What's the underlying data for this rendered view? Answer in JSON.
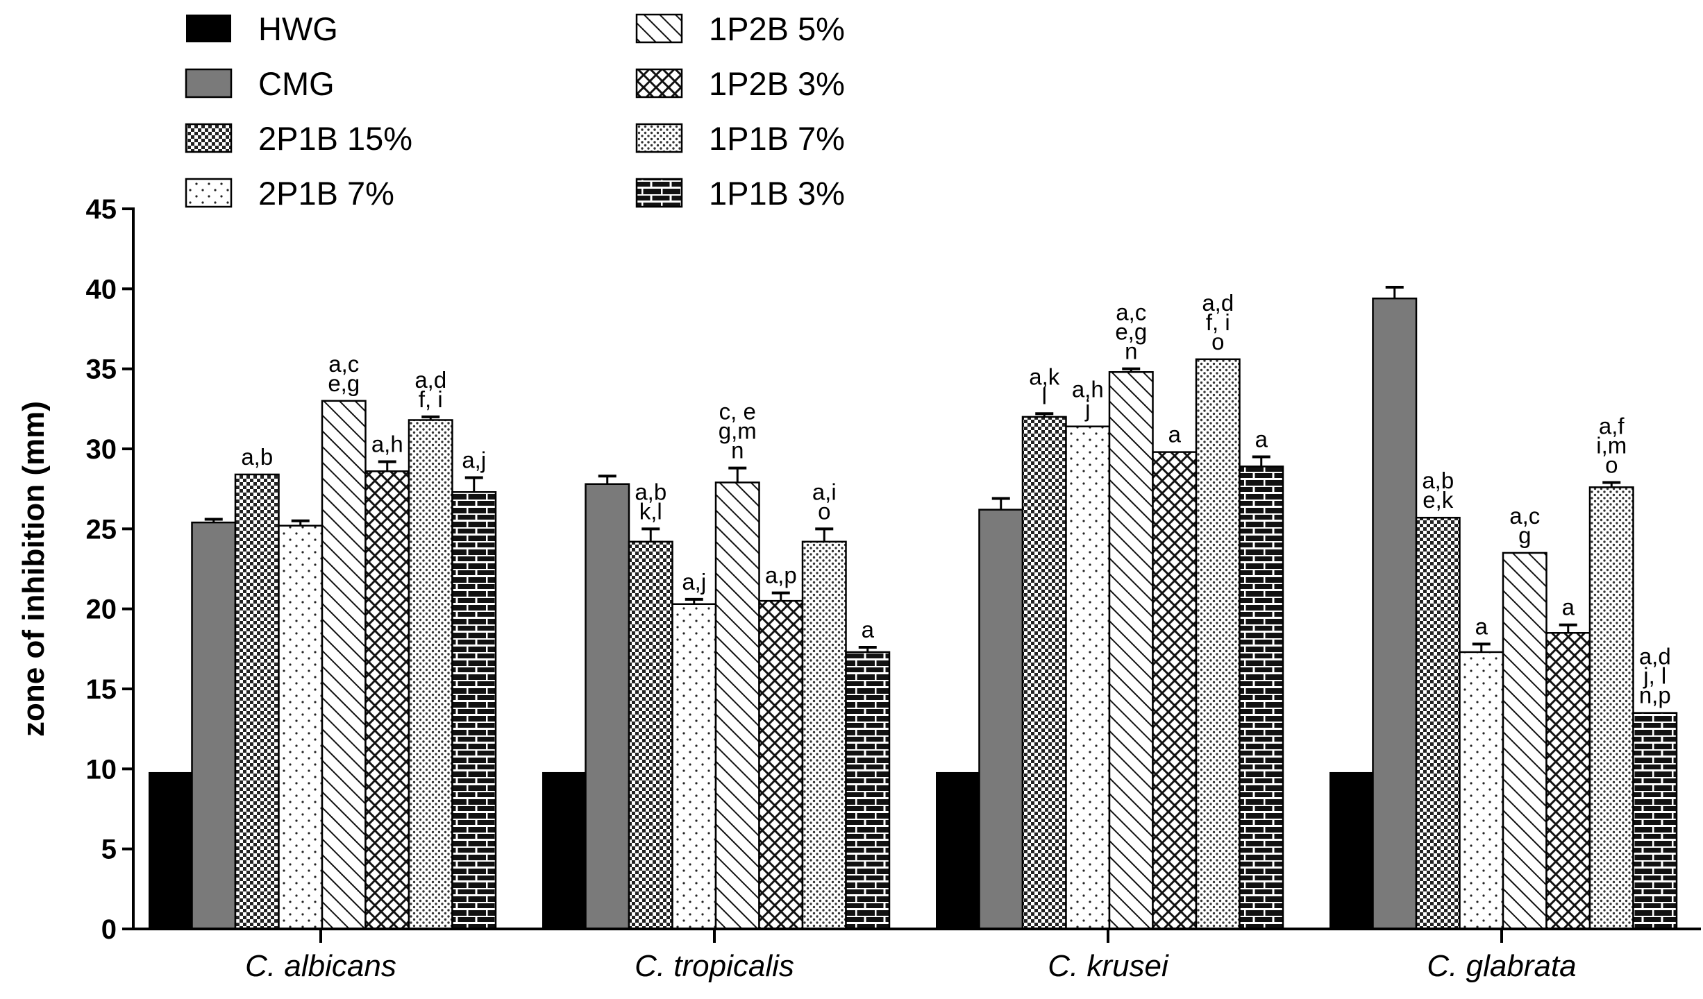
{
  "chart_data": {
    "type": "bar",
    "title": "",
    "xlabel": "",
    "ylabel": "zone of inhibition (mm)",
    "ylim": [
      0,
      45
    ],
    "yticks": [
      "0",
      "5",
      "10",
      "15",
      "20",
      "25",
      "30",
      "35",
      "40",
      "45"
    ],
    "grid": false,
    "legend_position": "top-left",
    "categories": [
      "C. albicans",
      "C. tropicalis",
      "C. krusei",
      "C. glabrata"
    ],
    "series": [
      {
        "name": "HWG",
        "pattern": "solid-black",
        "values": [
          9.8,
          9.8,
          9.8,
          9.8
        ],
        "errors": [
          0,
          0,
          0,
          0
        ],
        "labels": [
          [],
          [],
          [],
          []
        ]
      },
      {
        "name": "CMG",
        "pattern": "solid-gray",
        "values": [
          25.4,
          27.8,
          26.2,
          39.4
        ],
        "errors": [
          0.2,
          0.5,
          0.7,
          0.7
        ],
        "labels": [
          [],
          [],
          [],
          []
        ]
      },
      {
        "name": "2P1B 15%",
        "pattern": "checker",
        "values": [
          28.4,
          24.2,
          32.0,
          25.7
        ],
        "errors": [
          0,
          0.8,
          0.2,
          0
        ],
        "labels": [
          [
            "a,b"
          ],
          [
            "a,b",
            "k,l"
          ],
          [
            "a,k",
            "l"
          ],
          [
            "a,b",
            "e,k"
          ]
        ]
      },
      {
        "name": "2P1B 7%",
        "pattern": "sparse-dots",
        "values": [
          25.2,
          20.3,
          31.4,
          17.3
        ],
        "errors": [
          0.3,
          0.3,
          0,
          0.5
        ],
        "labels": [
          [],
          [
            "a,j"
          ],
          [
            "a,h",
            "j"
          ],
          [
            "a"
          ]
        ]
      },
      {
        "name": "1P2B 5%",
        "pattern": "diagonal-lines",
        "values": [
          33.0,
          27.9,
          34.8,
          23.5
        ],
        "errors": [
          0,
          0.9,
          0.2,
          0
        ],
        "labels": [
          [
            "a,c",
            "e,g"
          ],
          [
            "c, e",
            "g,m",
            "n"
          ],
          [
            "a,c",
            "e,g",
            "n"
          ],
          [
            "a,c",
            "g"
          ]
        ]
      },
      {
        "name": "1P2B 3%",
        "pattern": "crosshatch",
        "values": [
          28.6,
          20.5,
          29.8,
          18.5
        ],
        "errors": [
          0.6,
          0.5,
          0,
          0.5
        ],
        "labels": [
          [
            "a,h"
          ],
          [
            "a,p"
          ],
          [
            "a"
          ],
          [
            "a"
          ]
        ]
      },
      {
        "name": "1P1B 7%",
        "pattern": "dense-dots",
        "values": [
          31.8,
          24.2,
          35.6,
          27.6
        ],
        "errors": [
          0.2,
          0.8,
          0,
          0.3
        ],
        "labels": [
          [
            "a,d",
            "f, i"
          ],
          [
            "a,i",
            "o"
          ],
          [
            "a,d",
            "f, i",
            "o"
          ],
          [
            "a,f",
            "i,m",
            "o"
          ]
        ]
      },
      {
        "name": "1P1B 3%",
        "pattern": "brick",
        "values": [
          27.3,
          17.3,
          28.9,
          13.5
        ],
        "errors": [
          0.9,
          0.3,
          0.6,
          0
        ],
        "labels": [
          [
            "a,j"
          ],
          [
            "a"
          ],
          [
            "a"
          ],
          [
            "a,d",
            "j,  l",
            "n,p"
          ]
        ]
      }
    ]
  }
}
